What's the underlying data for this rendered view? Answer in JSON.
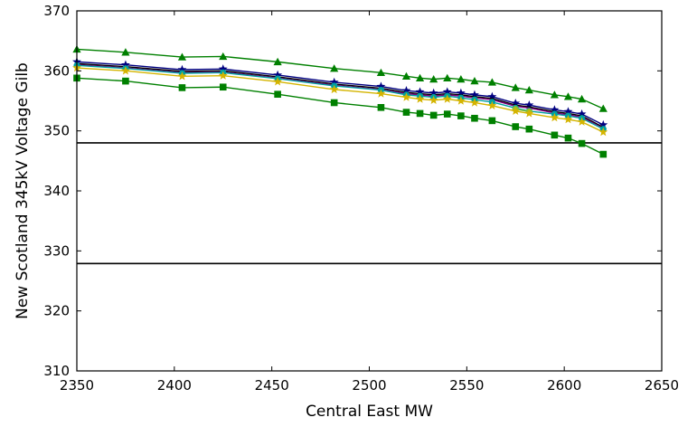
{
  "chart_data": {
    "type": "line",
    "title": "",
    "xlabel": "Central East MW",
    "ylabel": "New Scotland 345kV Voltage Gilb",
    "xlim": [
      2350,
      2650
    ],
    "ylim": [
      310,
      370
    ],
    "xticks": [
      2350,
      2400,
      2450,
      2500,
      2550,
      2600,
      2650
    ],
    "yticks": [
      310,
      320,
      330,
      340,
      350,
      360,
      370
    ],
    "grid": false,
    "legend": "none",
    "reference_lines": [
      {
        "y": 348.0,
        "color": "#000000"
      },
      {
        "y": 327.9,
        "color": "#000000"
      }
    ],
    "series": [
      {
        "color": "#008000",
        "marker": "triangle",
        "points": [
          [
            2350,
            363.6
          ],
          [
            2375,
            363.1
          ],
          [
            2404,
            362.3
          ],
          [
            2425,
            362.4
          ],
          [
            2453,
            361.5
          ],
          [
            2482,
            360.4
          ],
          [
            2506,
            359.7
          ],
          [
            2519,
            359.1
          ],
          [
            2526,
            358.8
          ],
          [
            2533,
            358.6
          ],
          [
            2540,
            358.8
          ],
          [
            2547,
            358.6
          ],
          [
            2554,
            358.3
          ],
          [
            2563,
            358.1
          ],
          [
            2575,
            357.2
          ],
          [
            2582,
            356.8
          ],
          [
            2595,
            356.0
          ],
          [
            2602,
            355.7
          ],
          [
            2609,
            355.3
          ],
          [
            2620,
            353.7
          ]
        ]
      },
      {
        "color": "#000080",
        "marker": "star",
        "points": [
          [
            2350,
            361.5
          ],
          [
            2375,
            361.0
          ],
          [
            2404,
            360.2
          ],
          [
            2425,
            360.3
          ],
          [
            2453,
            359.3
          ],
          [
            2482,
            358.1
          ],
          [
            2506,
            357.4
          ],
          [
            2519,
            356.7
          ],
          [
            2526,
            356.5
          ],
          [
            2533,
            356.3
          ],
          [
            2540,
            356.5
          ],
          [
            2547,
            356.3
          ],
          [
            2554,
            356.0
          ],
          [
            2563,
            355.7
          ],
          [
            2575,
            354.6
          ],
          [
            2582,
            354.3
          ],
          [
            2595,
            353.5
          ],
          [
            2602,
            353.2
          ],
          [
            2609,
            352.8
          ],
          [
            2620,
            351.0
          ]
        ]
      },
      {
        "color": "#000000",
        "marker": "none",
        "points": [
          [
            2350,
            361.2
          ],
          [
            2375,
            360.7
          ],
          [
            2404,
            359.9
          ],
          [
            2425,
            360.0
          ],
          [
            2453,
            359.0
          ],
          [
            2482,
            357.8
          ],
          [
            2506,
            357.1
          ],
          [
            2519,
            356.4
          ],
          [
            2526,
            356.2
          ],
          [
            2533,
            356.0
          ],
          [
            2540,
            356.2
          ],
          [
            2547,
            356.0
          ],
          [
            2554,
            355.7
          ],
          [
            2563,
            355.4
          ],
          [
            2575,
            354.3
          ],
          [
            2582,
            354.0
          ],
          [
            2595,
            353.2
          ],
          [
            2602,
            352.9
          ],
          [
            2609,
            352.5
          ],
          [
            2620,
            350.6
          ]
        ]
      },
      {
        "color": "#800080",
        "marker": "none",
        "points": [
          [
            2350,
            361.0
          ],
          [
            2375,
            360.5
          ],
          [
            2404,
            359.7
          ],
          [
            2425,
            359.8
          ],
          [
            2453,
            358.8
          ],
          [
            2482,
            357.6
          ],
          [
            2506,
            356.9
          ],
          [
            2519,
            356.2
          ],
          [
            2526,
            356.0
          ],
          [
            2533,
            355.8
          ],
          [
            2540,
            356.0
          ],
          [
            2547,
            355.8
          ],
          [
            2554,
            355.5
          ],
          [
            2563,
            355.2
          ],
          [
            2575,
            354.1
          ],
          [
            2582,
            353.8
          ],
          [
            2595,
            353.0
          ],
          [
            2602,
            352.7
          ],
          [
            2609,
            352.3
          ],
          [
            2620,
            350.4
          ]
        ]
      },
      {
        "color": "#00a0a0",
        "marker": "circle",
        "points": [
          [
            2350,
            360.9
          ],
          [
            2375,
            360.4
          ],
          [
            2404,
            359.6
          ],
          [
            2425,
            359.7
          ],
          [
            2453,
            358.7
          ],
          [
            2482,
            357.5
          ],
          [
            2506,
            356.8
          ],
          [
            2519,
            356.0
          ],
          [
            2526,
            355.8
          ],
          [
            2533,
            355.6
          ],
          [
            2540,
            355.8
          ],
          [
            2547,
            355.5
          ],
          [
            2554,
            355.2
          ],
          [
            2563,
            354.8
          ],
          [
            2575,
            353.8
          ],
          [
            2582,
            353.3
          ],
          [
            2595,
            352.8
          ],
          [
            2602,
            352.5
          ],
          [
            2609,
            352.1
          ],
          [
            2620,
            350.3
          ]
        ]
      },
      {
        "color": "#90c030",
        "marker": "circle",
        "points": [
          [
            2575,
            353.6
          ],
          [
            2582,
            353.2
          ]
        ]
      },
      {
        "color": "#d4b400",
        "marker": "star",
        "points": [
          [
            2350,
            360.5
          ],
          [
            2375,
            360.0
          ],
          [
            2404,
            359.1
          ],
          [
            2425,
            359.2
          ],
          [
            2453,
            358.2
          ],
          [
            2482,
            356.9
          ],
          [
            2506,
            356.2
          ],
          [
            2519,
            355.6
          ],
          [
            2526,
            355.3
          ],
          [
            2533,
            355.1
          ],
          [
            2540,
            355.3
          ],
          [
            2547,
            355.0
          ],
          [
            2554,
            354.7
          ],
          [
            2563,
            354.2
          ],
          [
            2575,
            353.3
          ],
          [
            2582,
            352.9
          ],
          [
            2595,
            352.2
          ],
          [
            2602,
            351.9
          ],
          [
            2609,
            351.5
          ],
          [
            2620,
            349.8
          ]
        ]
      },
      {
        "color": "#008000",
        "marker": "square",
        "points": [
          [
            2350,
            358.8
          ],
          [
            2375,
            358.3
          ],
          [
            2404,
            357.2
          ],
          [
            2425,
            357.3
          ],
          [
            2453,
            356.1
          ],
          [
            2482,
            354.7
          ],
          [
            2506,
            353.9
          ],
          [
            2519,
            353.1
          ],
          [
            2526,
            352.9
          ],
          [
            2533,
            352.6
          ],
          [
            2540,
            352.8
          ],
          [
            2547,
            352.5
          ],
          [
            2554,
            352.1
          ],
          [
            2563,
            351.7
          ],
          [
            2575,
            350.7
          ],
          [
            2582,
            350.3
          ],
          [
            2595,
            349.3
          ],
          [
            2602,
            348.8
          ],
          [
            2609,
            347.9
          ],
          [
            2620,
            346.1
          ]
        ]
      }
    ]
  }
}
